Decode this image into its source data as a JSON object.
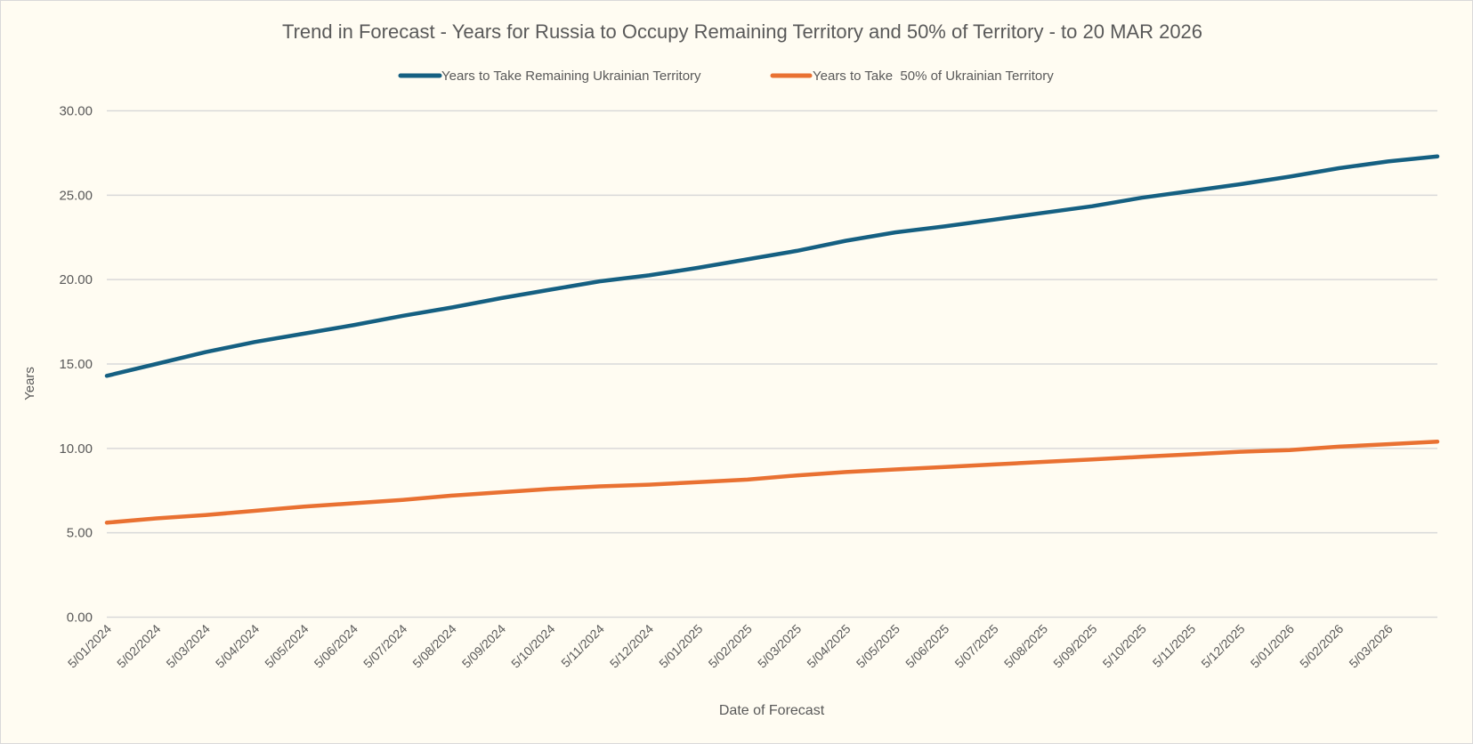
{
  "chart_data": {
    "type": "line",
    "title": "Trend in Forecast - Years for Russia to Occupy Remaining Territory and 50% of Territory - to 20 MAR 2026",
    "xlabel": "Date of Forecast",
    "ylabel": "Years",
    "ylim": [
      0,
      30
    ],
    "yticks": [
      "0.00",
      "5.00",
      "10.00",
      "15.00",
      "20.00",
      "25.00",
      "30.00"
    ],
    "grid": true,
    "legend_position": "top",
    "x_tick_labels": [
      "5/01/2024",
      "5/02/2024",
      "5/03/2024",
      "5/04/2024",
      "5/05/2024",
      "5/06/2024",
      "5/07/2024",
      "5/08/2024",
      "5/09/2024",
      "5/10/2024",
      "5/11/2024",
      "5/12/2024",
      "5/01/2025",
      "5/02/2025",
      "5/03/2025",
      "5/04/2025",
      "5/05/2025",
      "5/06/2025",
      "5/07/2025",
      "5/08/2025",
      "5/09/2025",
      "5/10/2025",
      "5/11/2025",
      "5/12/2025",
      "5/01/2026",
      "5/02/2026",
      "5/03/2026"
    ],
    "series": [
      {
        "name": "Years to Take Remaining Ukrainian Territory",
        "color": "#156082",
        "values": [
          14.3,
          15.0,
          15.7,
          16.3,
          16.8,
          17.3,
          17.85,
          18.35,
          18.9,
          19.4,
          19.9,
          20.25,
          20.7,
          21.2,
          21.7,
          22.3,
          22.8,
          23.15,
          23.55,
          23.95,
          24.35,
          24.85,
          25.25,
          25.65,
          26.1,
          26.6,
          27.0,
          27.3
        ]
      },
      {
        "name": "Years to Take  50% of Ukrainian Territory",
        "color": "#E97132",
        "values": [
          5.6,
          5.85,
          6.05,
          6.3,
          6.55,
          6.75,
          6.95,
          7.2,
          7.4,
          7.6,
          7.75,
          7.85,
          8.0,
          8.15,
          8.4,
          8.6,
          8.75,
          8.9,
          9.05,
          9.2,
          9.35,
          9.5,
          9.65,
          9.8,
          9.9,
          10.1,
          10.25,
          10.4
        ]
      }
    ]
  },
  "colors": {
    "background": "#FFFCF2",
    "grid": "#D9D9D9",
    "text": "#595959"
  }
}
